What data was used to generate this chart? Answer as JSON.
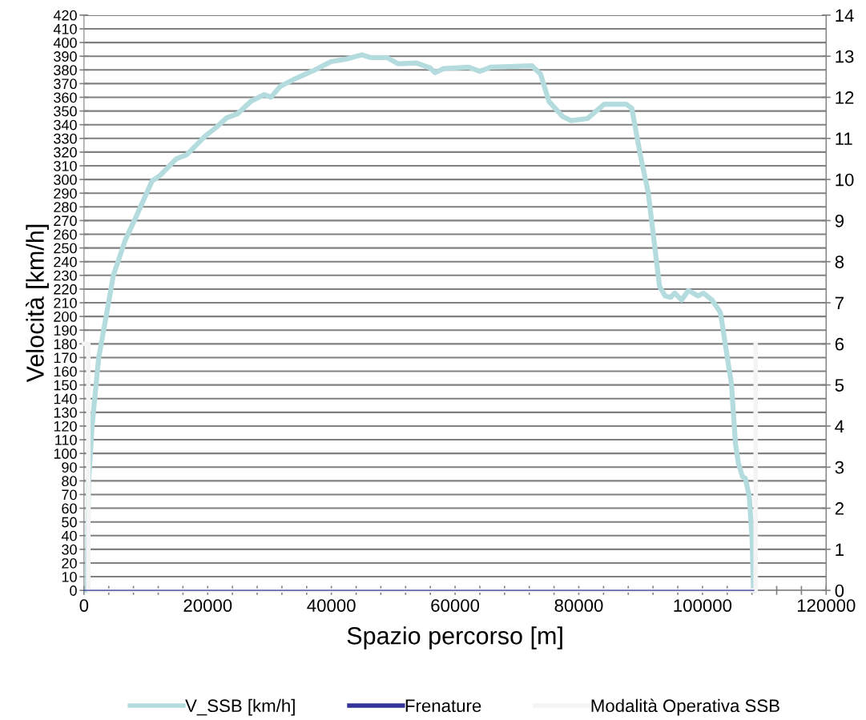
{
  "chart_data": {
    "type": "line",
    "xlabel": "Spazio percorso [m]",
    "ylabel": "Velocità [km/h]",
    "xlim": [
      0,
      120000
    ],
    "xticks": [
      0,
      {
        "value": 4000,
        "label": null
      },
      {
        "value": 8000,
        "label": null
      },
      {
        "value": 12000,
        "label": null
      },
      {
        "value": 16000,
        "label": null
      },
      20000,
      {
        "value": 24000,
        "label": null
      },
      {
        "value": 28000,
        "label": null
      },
      {
        "value": 32000,
        "label": null
      },
      {
        "value": 36000,
        "label": null
      },
      40000,
      {
        "value": 44000,
        "label": null
      },
      {
        "value": 48000,
        "label": null
      },
      {
        "value": 52000,
        "label": null
      },
      {
        "value": 56000,
        "label": null
      },
      60000,
      {
        "value": 64000,
        "label": null
      },
      {
        "value": 68000,
        "label": null
      },
      {
        "value": 72000,
        "label": null
      },
      {
        "value": 76000,
        "label": null
      },
      80000,
      {
        "value": 84000,
        "label": null
      },
      {
        "value": 88000,
        "label": null
      },
      {
        "value": 92000,
        "label": null
      },
      {
        "value": 96000,
        "label": null
      },
      100000,
      {
        "value": 104000,
        "label": null
      },
      {
        "value": 108000,
        "label": null
      },
      {
        "value": 112000,
        "label": null
      },
      {
        "value": 116000,
        "label": null
      },
      120000
    ],
    "ylim": [
      0,
      420
    ],
    "yticks": [
      0,
      10,
      20,
      30,
      40,
      50,
      60,
      70,
      80,
      90,
      100,
      110,
      120,
      130,
      140,
      150,
      160,
      170,
      180,
      190,
      200,
      210,
      220,
      230,
      240,
      250,
      260,
      270,
      280,
      290,
      300,
      310,
      320,
      330,
      340,
      350,
      360,
      370,
      380,
      390,
      400,
      410,
      420
    ],
    "y2lim": [
      0,
      14
    ],
    "y2ticks": [
      0,
      1,
      2,
      3,
      4,
      5,
      6,
      7,
      8,
      9,
      10,
      11,
      12,
      13,
      14
    ],
    "grid": "y",
    "legend": "bottom",
    "marker": "none",
    "line_style": "solid",
    "series": [
      {
        "name": "V_SSB [km/h]",
        "color": "#b4dcdf",
        "x": [
          500,
          740,
          1040,
          1300,
          2380,
          3460,
          4750,
          6700,
          8640,
          11020,
          12310,
          14900,
          16590,
          19660,
          21380,
          23070,
          24840,
          26960,
          29160,
          30200,
          31750,
          34340,
          37330,
          39920,
          42510,
          44930,
          46400,
          48990,
          50760,
          53780,
          55950,
          56770,
          58160,
          62190,
          63980,
          65770,
          72450,
          73820,
          75170,
          77380,
          78730,
          81390,
          84110,
          87680,
          88570,
          89920,
          91240,
          93060,
          93950,
          94850,
          95520,
          96630,
          97720,
          99280,
          100180,
          101540,
          102890,
          103110,
          103780,
          104680,
          105340,
          105800,
          106470,
          106920,
          107570,
          108020,
          108250
        ],
        "values": [
          0,
          80,
          100,
          120,
          170,
          197,
          230,
          256,
          275,
          299,
          303,
          315,
          318,
          332,
          338,
          345,
          348,
          357,
          362,
          360,
          368,
          374,
          380,
          386,
          388,
          391,
          389,
          389,
          384.5,
          385,
          381.5,
          378,
          381,
          382,
          379,
          382,
          383,
          377,
          357,
          346,
          343,
          344.5,
          355,
          355,
          352,
          318.6,
          290,
          222,
          215,
          214,
          217,
          212,
          219,
          215,
          217,
          212,
          203,
          197,
          177,
          151,
          107,
          93,
          83,
          82,
          68.5,
          38,
          0
        ]
      },
      {
        "name": "Frenature",
        "color": "#333399",
        "axis": "y2",
        "x": [
          0,
          108300
        ],
        "values": [
          0,
          0
        ]
      },
      {
        "name": "Modalità Operativa SSB",
        "color": "#f4f4f4",
        "axis": "y2",
        "x": [
          0,
          700,
          700,
          108600,
          108600
        ],
        "values": [
          6,
          6,
          0,
          0,
          6
        ]
      }
    ]
  }
}
